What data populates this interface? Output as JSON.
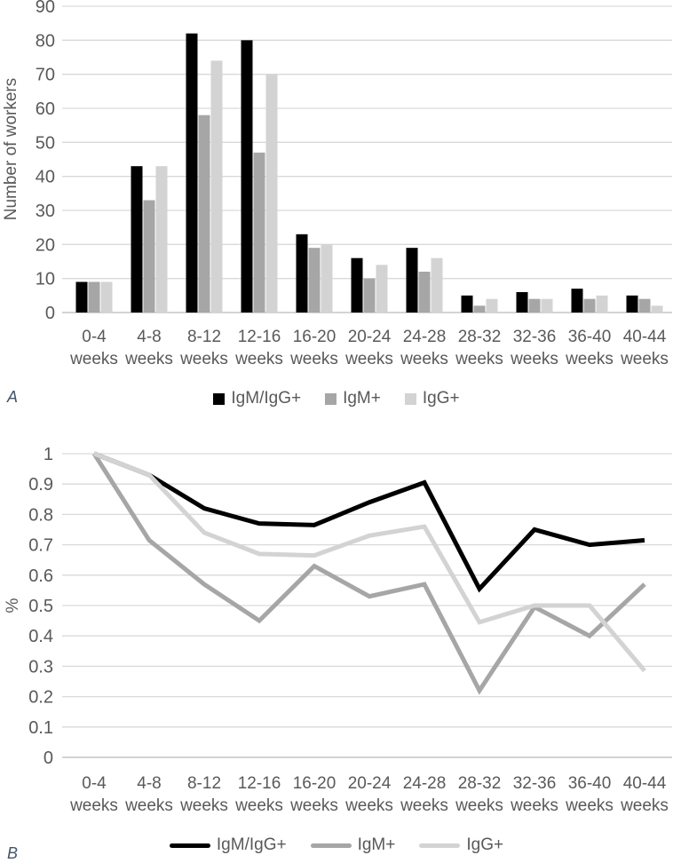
{
  "panels": [
    {
      "label": "A"
    },
    {
      "label": "B"
    }
  ],
  "colors": {
    "text": "#595959",
    "panel_label": "#44546a",
    "gridline": "#d9d9d9",
    "axis_line": "#bfbfbf",
    "background": "#ffffff",
    "series_black": "#000000",
    "series_gray": "#a6a6a6",
    "series_lightgray": "#d3d3d3"
  },
  "chart_data": [
    {
      "type": "bar",
      "title": "",
      "xlabel": "",
      "ylabel": "Number of workers",
      "ylim": [
        0,
        90
      ],
      "yticks": [
        "90",
        "80",
        "70",
        "60",
        "50",
        "40",
        "30",
        "20",
        "10",
        "0"
      ],
      "grid": true,
      "legend_position": "bottom",
      "categories": [
        "0-4 weeks",
        "4-8 weeks",
        "8-12 weeks",
        "12-16 weeks",
        "16-20 weeks",
        "20-24 weeks",
        "24-28 weeks",
        "28-32 weeks",
        "32-36 weeks",
        "36-40 weeks",
        "40-44 weeks"
      ],
      "series": [
        {
          "name": "IgM/IgG+",
          "color": "#000000",
          "values": [
            9,
            43,
            82,
            80,
            23,
            16,
            19,
            5,
            6,
            7,
            5
          ]
        },
        {
          "name": "IgM+",
          "color": "#a6a6a6",
          "values": [
            9,
            33,
            58,
            47,
            19,
            10,
            12,
            2,
            4,
            4,
            4
          ]
        },
        {
          "name": "IgG+",
          "color": "#d3d3d3",
          "values": [
            9,
            43,
            74,
            70,
            20,
            14,
            16,
            4,
            4,
            5,
            2
          ]
        }
      ]
    },
    {
      "type": "line",
      "title": "",
      "xlabel": "",
      "ylabel": "%",
      "ylim": [
        0,
        1
      ],
      "yticks": [
        "1",
        "0.9",
        "0.8",
        "0.7",
        "0.6",
        "0.5",
        "0.4",
        "0.3",
        "0.2",
        "0.1",
        "0"
      ],
      "grid": true,
      "legend_position": "bottom",
      "categories": [
        "0-4 weeks",
        "4-8 weeks",
        "8-12 weeks",
        "12-16 weeks",
        "16-20 weeks",
        "20-24 weeks",
        "24-28 weeks",
        "28-32 weeks",
        "32-36 weeks",
        "36-40 weeks",
        "40-44 weeks"
      ],
      "series": [
        {
          "name": "IgM/IgG+",
          "color": "#000000",
          "values": [
            1,
            0.93,
            0.82,
            0.77,
            0.765,
            0.84,
            0.905,
            0.555,
            0.75,
            0.7,
            0.715
          ]
        },
        {
          "name": "IgM+",
          "color": "#a6a6a6",
          "values": [
            1,
            0.715,
            0.57,
            0.45,
            0.63,
            0.53,
            0.57,
            0.22,
            0.495,
            0.4,
            0.57
          ]
        },
        {
          "name": "IgG+",
          "color": "#d3d3d3",
          "values": [
            1,
            0.93,
            0.74,
            0.67,
            0.665,
            0.73,
            0.76,
            0.445,
            0.5,
            0.5,
            0.285
          ]
        }
      ]
    }
  ]
}
